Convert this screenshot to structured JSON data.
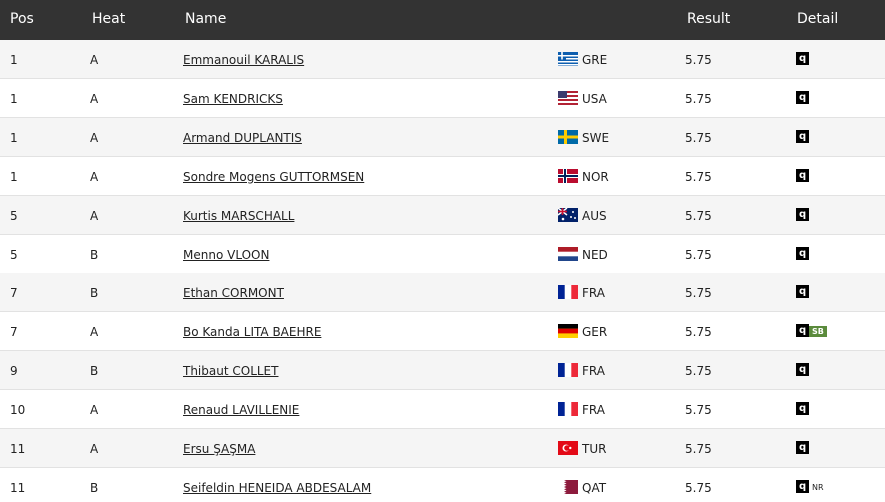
{
  "header": {
    "columns": [
      "Pos",
      "Heat",
      "Name",
      "Result",
      "Detail"
    ]
  },
  "table": {
    "rows": [
      {
        "pos": "1",
        "heat": "A",
        "name": "Emmanouil KARALIS",
        "country": "GRE",
        "result": "5.75",
        "detail": [
          {
            "text": "q",
            "color": "#000000"
          }
        ]
      },
      {
        "pos": "1",
        "heat": "A",
        "name": "Sam KENDRICKS",
        "country": "USA",
        "result": "5.75",
        "detail": [
          {
            "text": "q",
            "color": "#000000"
          }
        ]
      },
      {
        "pos": "1",
        "heat": "A",
        "name": "Armand DUPLANTIS",
        "country": "SWE",
        "result": "5.75",
        "detail": [
          {
            "text": "q",
            "color": "#000000"
          }
        ]
      },
      {
        "pos": "1",
        "heat": "A",
        "name": "Sondre Mogens GUTTORMSEN",
        "country": "NOR",
        "result": "5.75",
        "detail": [
          {
            "text": "q",
            "color": "#000000"
          }
        ]
      },
      {
        "pos": "5",
        "heat": "A",
        "name": "Kurtis MARSCHALL",
        "country": "AUS",
        "result": "5.75",
        "detail": [
          {
            "text": "q",
            "color": "#000000"
          }
        ]
      },
      {
        "pos": "5",
        "heat": "B",
        "name": "Menno VLOON",
        "country": "NED",
        "result": "5.75",
        "detail": [
          {
            "text": "q",
            "color": "#000000"
          }
        ]
      },
      {
        "pos": "7",
        "heat": "B",
        "name": "Ethan CORMONT",
        "country": "FRA",
        "result": "5.75",
        "detail": [
          {
            "text": "q",
            "color": "#000000"
          }
        ]
      },
      {
        "pos": "7",
        "heat": "A",
        "name": "Bo Kanda LITA BAEHRE",
        "country": "GER",
        "result": "5.75",
        "detail": [
          {
            "text": "q",
            "color": "#000000"
          },
          {
            "text": "SB",
            "color": "#5b8b3c"
          }
        ]
      },
      {
        "pos": "9",
        "heat": "B",
        "name": "Thibaut COLLET",
        "country": "FRA",
        "result": "5.75",
        "detail": [
          {
            "text": "q",
            "color": "#000000"
          }
        ]
      },
      {
        "pos": "10",
        "heat": "A",
        "name": "Renaud LAVILLENIE",
        "country": "FRA",
        "result": "5.75",
        "detail": [
          {
            "text": "q",
            "color": "#000000"
          }
        ]
      },
      {
        "pos": "11",
        "heat": "A",
        "name": "Ersu ŞAŞMA",
        "country": "TUR",
        "result": "5.75",
        "detail": [
          {
            "text": "q",
            "color": "#000000"
          }
        ]
      },
      {
        "pos": "11",
        "heat": "B",
        "name": "Seifeldin HENEIDA ABDESALAM",
        "country": "QAT",
        "result": "5.75",
        "detail": [
          {
            "text": "q",
            "color": "#000000"
          },
          {
            "text": "NR"
          }
        ]
      }
    ]
  }
}
